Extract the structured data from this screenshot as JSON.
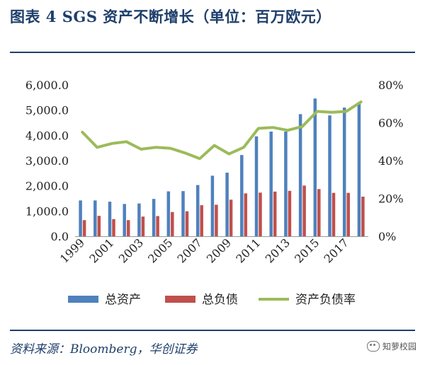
{
  "header": {
    "title": "图表 4   SGS 资产不断增长（单位：百万欧元）"
  },
  "footer": {
    "source": "资料来源：Bloomberg，华创证券",
    "watermark": "知萝校园"
  },
  "colors": {
    "title": "#1f3f6b",
    "bars_assets": "#4f81bd",
    "bars_liabilities": "#c0504d",
    "line_ratio": "#9bbb59"
  },
  "chart_data": {
    "type": "bar",
    "categories": [
      "1999",
      "2000",
      "2001",
      "2002",
      "2003",
      "2004",
      "2005",
      "2006",
      "2007",
      "2008",
      "2009",
      "2010",
      "2011",
      "2012",
      "2013",
      "2014",
      "2015",
      "2016",
      "2017",
      "2018"
    ],
    "x_tick_labels": [
      "1999",
      "2001",
      "2003",
      "2005",
      "2007",
      "2009",
      "2011",
      "2013",
      "2015",
      "2017"
    ],
    "y_left": {
      "ticks": [
        "0.0",
        "1,000.0",
        "2,000.0",
        "3,000.0",
        "4,000.0",
        "5,000.0",
        "6,000.0"
      ],
      "range": [
        0,
        6000
      ]
    },
    "y_right": {
      "ticks": [
        "0%",
        "20%",
        "40%",
        "60%",
        "80%"
      ],
      "range": [
        0,
        80
      ]
    },
    "series": [
      {
        "name": "总资产",
        "type": "bar",
        "axis": "left",
        "color": "#4f81bd",
        "values": [
          1420,
          1420,
          1370,
          1280,
          1300,
          1480,
          1780,
          1790,
          2030,
          2400,
          2520,
          3220,
          3960,
          4150,
          4150,
          4840,
          5460,
          4790,
          5100,
          5310
        ]
      },
      {
        "name": "总负债",
        "type": "bar",
        "axis": "left",
        "color": "#c0504d",
        "values": [
          640,
          810,
          680,
          640,
          780,
          800,
          960,
          990,
          1230,
          1250,
          1450,
          1700,
          1730,
          1770,
          1800,
          2010,
          1870,
          1720,
          1720,
          1570
        ]
      },
      {
        "name": "资产负债率",
        "type": "line",
        "axis": "right",
        "color": "#9bbb59",
        "values": [
          55,
          47,
          49,
          50,
          46,
          47,
          46.5,
          44,
          41,
          48,
          43.5,
          47,
          57,
          57.5,
          56,
          58,
          66,
          65.5,
          66,
          71
        ]
      }
    ],
    "legend_position": "bottom",
    "grid": false
  }
}
